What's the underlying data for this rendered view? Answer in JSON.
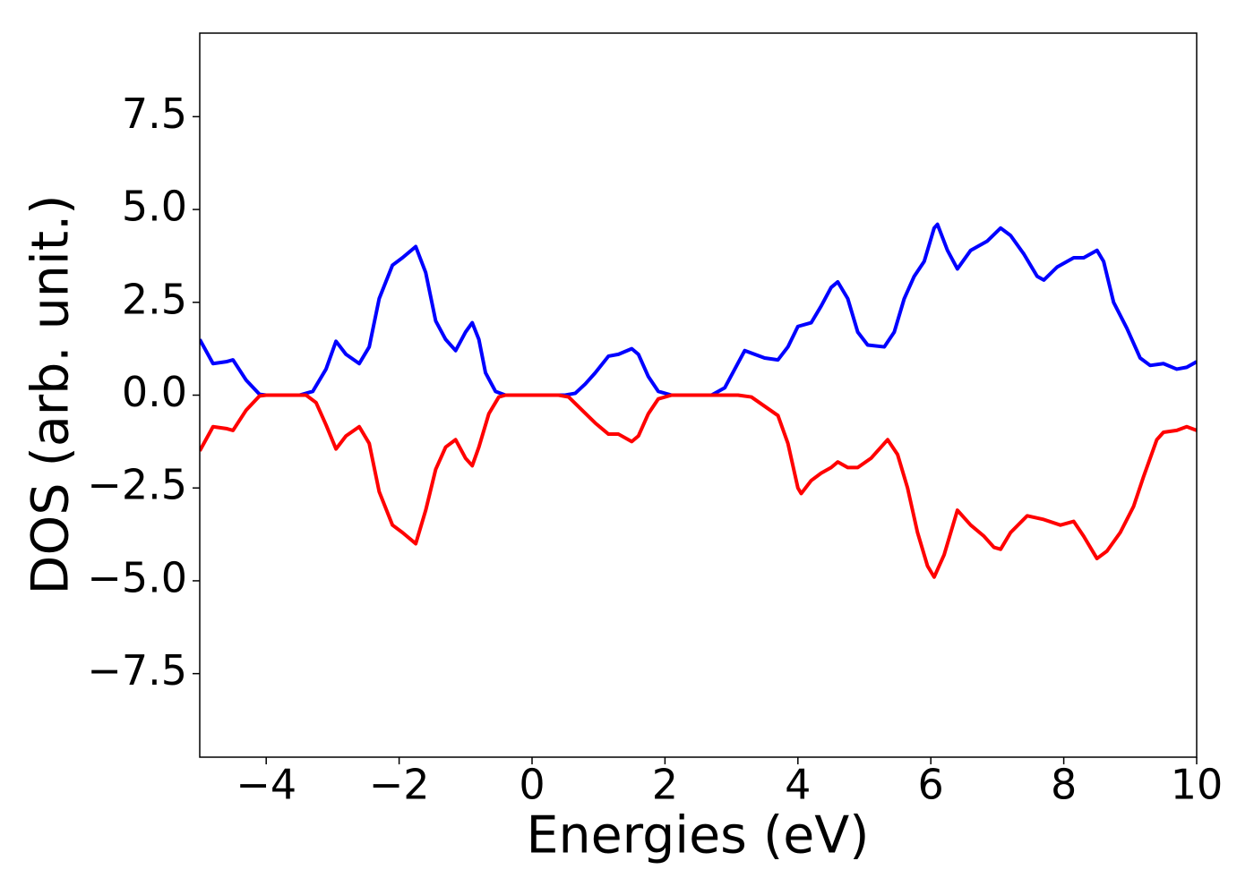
{
  "chart_data": {
    "type": "line",
    "xlabel": "Energies (eV)",
    "ylabel": "DOS (arb. unit.)",
    "xlim": [
      -5,
      10
    ],
    "ylim": [
      -9.75,
      9.75
    ],
    "xticks": [
      {
        "value": -4,
        "label": "−4"
      },
      {
        "value": -2,
        "label": "−2"
      },
      0,
      2,
      4,
      6,
      8,
      10
    ],
    "yticks": [
      {
        "value": -7.5,
        "label": "−7.5"
      },
      {
        "value": -5,
        "label": "−5.0"
      },
      {
        "value": -2.5,
        "label": "−2.5"
      },
      {
        "value": 0,
        "label": "0.0"
      },
      2.5,
      {
        "value": 5,
        "label": "5.0"
      },
      7.5
    ],
    "series": [
      {
        "color": "#0000ff",
        "x": [
          -5,
          -4.8,
          -4.6,
          -4.5,
          -4.3,
          -4.1,
          -4.0,
          -3.5,
          -3.3,
          -3.1,
          -2.95,
          -2.8,
          -2.6,
          -2.45,
          -2.3,
          -2.1,
          -1.95,
          -1.75,
          -1.6,
          -1.45,
          -1.3,
          -1.15,
          -1.0,
          -0.9,
          -0.8,
          -0.7,
          -0.55,
          -0.4,
          0.5,
          0.65,
          0.8,
          0.95,
          1.15,
          1.3,
          1.5,
          1.6,
          1.75,
          1.9,
          2.1,
          2.7,
          2.9,
          3.05,
          3.2,
          3.35,
          3.5,
          3.7,
          3.85,
          4.0,
          4.2,
          4.35,
          4.5,
          4.6,
          4.75,
          4.9,
          5.05,
          5.3,
          5.45,
          5.6,
          5.75,
          5.9,
          6.05,
          6.1,
          6.25,
          6.4,
          6.6,
          6.85,
          7.05,
          7.2,
          7.4,
          7.6,
          7.7,
          7.9,
          8.15,
          8.3,
          8.5,
          8.6,
          8.75,
          8.95,
          9.15,
          9.3,
          9.5,
          9.7,
          9.85,
          10
        ],
        "values": [
          1.5,
          0.85,
          0.9,
          0.95,
          0.4,
          0.02,
          0,
          0,
          0.1,
          0.7,
          1.45,
          1.1,
          0.85,
          1.3,
          2.6,
          3.5,
          3.7,
          4.0,
          3.3,
          2.0,
          1.5,
          1.2,
          1.7,
          1.95,
          1.5,
          0.6,
          0.1,
          0,
          0,
          0.05,
          0.3,
          0.6,
          1.05,
          1.1,
          1.25,
          1.1,
          0.5,
          0.1,
          0,
          0,
          0.2,
          0.7,
          1.2,
          1.1,
          1.0,
          0.95,
          1.3,
          1.85,
          1.95,
          2.4,
          2.9,
          3.05,
          2.6,
          1.7,
          1.35,
          1.3,
          1.7,
          2.6,
          3.2,
          3.6,
          4.5,
          4.6,
          3.9,
          3.4,
          3.9,
          4.15,
          4.5,
          4.3,
          3.8,
          3.2,
          3.1,
          3.45,
          3.7,
          3.7,
          3.9,
          3.6,
          2.5,
          1.8,
          1.0,
          0.8,
          0.85,
          0.7,
          0.75,
          0.9
        ]
      },
      {
        "color": "#ff0000",
        "x": [
          -5,
          -4.8,
          -4.6,
          -4.5,
          -4.3,
          -4.1,
          -4.0,
          -3.4,
          -3.25,
          -3.1,
          -2.95,
          -2.8,
          -2.6,
          -2.45,
          -2.3,
          -2.1,
          -1.95,
          -1.75,
          -1.6,
          -1.45,
          -1.3,
          -1.15,
          -1.0,
          -0.9,
          -0.8,
          -0.65,
          -0.5,
          -0.4,
          0.4,
          0.55,
          0.75,
          0.95,
          1.15,
          1.3,
          1.5,
          1.6,
          1.75,
          1.9,
          2.1,
          3.1,
          3.3,
          3.5,
          3.7,
          3.85,
          4.0,
          4.05,
          4.2,
          4.35,
          4.5,
          4.6,
          4.75,
          4.9,
          5.1,
          5.35,
          5.5,
          5.65,
          5.8,
          5.95,
          6.05,
          6.2,
          6.4,
          6.6,
          6.8,
          6.95,
          7.05,
          7.2,
          7.45,
          7.7,
          7.95,
          8.15,
          8.3,
          8.5,
          8.65,
          8.85,
          9.05,
          9.2,
          9.4,
          9.5,
          9.7,
          9.85,
          10
        ],
        "values": [
          -1.5,
          -0.85,
          -0.9,
          -0.95,
          -0.4,
          -0.02,
          0,
          0,
          -0.2,
          -0.8,
          -1.45,
          -1.1,
          -0.85,
          -1.3,
          -2.6,
          -3.5,
          -3.7,
          -4.0,
          -3.1,
          -2.0,
          -1.4,
          -1.2,
          -1.7,
          -1.9,
          -1.4,
          -0.5,
          -0.05,
          0,
          0,
          -0.05,
          -0.4,
          -0.75,
          -1.05,
          -1.05,
          -1.25,
          -1.1,
          -0.5,
          -0.1,
          0,
          0,
          -0.05,
          -0.3,
          -0.55,
          -1.3,
          -2.5,
          -2.65,
          -2.3,
          -2.1,
          -1.95,
          -1.8,
          -1.95,
          -1.95,
          -1.7,
          -1.2,
          -1.6,
          -2.5,
          -3.7,
          -4.6,
          -4.9,
          -4.3,
          -3.1,
          -3.5,
          -3.8,
          -4.1,
          -4.15,
          -3.7,
          -3.25,
          -3.35,
          -3.5,
          -3.4,
          -3.8,
          -4.4,
          -4.2,
          -3.7,
          -3.0,
          -2.2,
          -1.2,
          -1.0,
          -0.95,
          -0.85,
          -0.95
        ]
      }
    ]
  }
}
